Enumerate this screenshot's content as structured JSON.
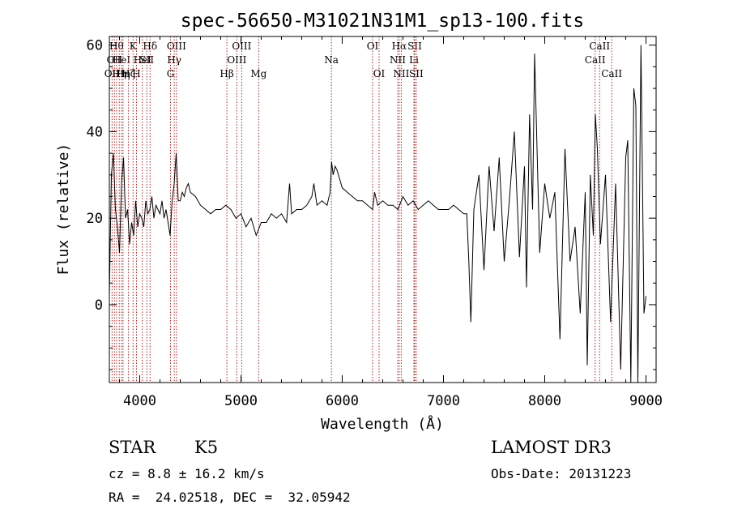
{
  "chart_data": {
    "type": "line",
    "title": "spec-56650-M31021N31M1_sp13-100.fits",
    "xlabel": "Wavelength (Å)",
    "ylabel": "Flux (relative)",
    "xlim": [
      3700,
      9100
    ],
    "ylim": [
      -18,
      62
    ],
    "x_ticks": [
      4000,
      5000,
      6000,
      7000,
      8000,
      9000
    ],
    "y_ticks": [
      0,
      20,
      40,
      60
    ],
    "grid": false,
    "line_color": "#000000",
    "marker_color": "#b22222",
    "series": [
      {
        "x": [
          3700,
          3720,
          3740,
          3760,
          3780,
          3800,
          3820,
          3840,
          3860,
          3880,
          3900,
          3920,
          3940,
          3960,
          3980,
          4000,
          4020,
          4040,
          4060,
          4080,
          4100,
          4120,
          4140,
          4160,
          4180,
          4200,
          4220,
          4240,
          4260,
          4280,
          4300,
          4320,
          4340,
          4360,
          4380,
          4400,
          4420,
          4440,
          4460,
          4480,
          4500,
          4550,
          4600,
          4650,
          4700,
          4750,
          4800,
          4850,
          4900,
          4950,
          5000,
          5050,
          5100,
          5150,
          5200,
          5250,
          5300,
          5350,
          5400,
          5450,
          5480,
          5500,
          5550,
          5600,
          5650,
          5700,
          5720,
          5750,
          5800,
          5850,
          5880,
          5895,
          5910,
          5930,
          5950,
          6000,
          6050,
          6100,
          6150,
          6200,
          6250,
          6300,
          6320,
          6350,
          6400,
          6450,
          6500,
          6550,
          6600,
          6650,
          6700,
          6750,
          6800,
          6850,
          6900,
          6950,
          7000,
          7050,
          7100,
          7150,
          7200,
          7230,
          7250,
          7270,
          7300,
          7350,
          7400,
          7450,
          7500,
          7550,
          7600,
          7650,
          7700,
          7750,
          7800,
          7820,
          7850,
          7880,
          7900,
          7950,
          8000,
          8050,
          8100,
          8150,
          8200,
          8250,
          8300,
          8350,
          8400,
          8420,
          8450,
          8480,
          8500,
          8520,
          8550,
          8600,
          8650,
          8700,
          8750,
          8800,
          8820,
          8850,
          8880,
          8900,
          8920,
          8950,
          8980,
          9000
        ],
        "y": [
          2,
          30,
          35,
          22,
          18,
          12,
          28,
          34,
          20,
          22,
          14,
          19,
          16,
          24,
          18,
          21,
          20,
          18,
          24,
          21,
          22,
          25,
          20,
          23,
          22,
          21,
          24,
          20,
          22,
          19,
          16,
          24,
          28,
          35,
          24,
          24,
          26,
          25,
          27,
          28,
          26,
          25,
          23,
          22,
          21,
          22,
          22,
          23,
          22,
          20,
          21,
          18,
          20,
          16,
          19,
          19,
          21,
          20,
          21,
          19,
          28,
          21,
          22,
          22,
          23,
          25,
          28,
          23,
          24,
          23,
          26,
          33,
          30,
          32,
          31,
          27,
          26,
          25,
          24,
          24,
          23,
          22,
          26,
          23,
          24,
          23,
          23,
          22,
          25,
          23,
          24,
          22,
          23,
          24,
          23,
          22,
          22,
          22,
          23,
          22,
          21,
          21,
          10,
          -4,
          22,
          30,
          8,
          32,
          17,
          34,
          10,
          24,
          40,
          11,
          32,
          4,
          44,
          22,
          58,
          12,
          28,
          20,
          26,
          -8,
          36,
          10,
          18,
          -2,
          26,
          -14,
          30,
          16,
          44,
          36,
          14,
          30,
          -4,
          28,
          -15,
          34,
          38,
          -18,
          50,
          46,
          -18,
          60,
          -2,
          2
        ]
      }
    ],
    "line_markers": [
      {
        "wavelength": 3727,
        "label": "OII",
        "row": 2
      },
      {
        "wavelength": 3750,
        "label": "OII",
        "row": 1
      },
      {
        "wavelength": 3771,
        "label": "Hθ",
        "row": 0
      },
      {
        "wavelength": 3798,
        "label": "Hη",
        "row": 2
      },
      {
        "wavelength": 3820,
        "label": "HeI",
        "row": 1
      },
      {
        "wavelength": 3835,
        "label": "Hη",
        "row": 2
      },
      {
        "wavelength": 3889,
        "label": "Hζ",
        "row": 2
      },
      {
        "wavelength": 3934,
        "label": "K",
        "row": 0
      },
      {
        "wavelength": 3968,
        "label": "H",
        "row": 2
      },
      {
        "wavelength": 4026,
        "label": "HeI",
        "row": 1
      },
      {
        "wavelength": 4070,
        "label": "SII",
        "row": 1
      },
      {
        "wavelength": 4102,
        "label": "Hδ",
        "row": 0
      },
      {
        "wavelength": 4304,
        "label": "G",
        "row": 2
      },
      {
        "wavelength": 4341,
        "label": "Hγ",
        "row": 1
      },
      {
        "wavelength": 4363,
        "label": "OIII",
        "row": 0
      },
      {
        "wavelength": 4861,
        "label": "Hβ",
        "row": 2
      },
      {
        "wavelength": 4959,
        "label": "OIII",
        "row": 1
      },
      {
        "wavelength": 5007,
        "label": "OIII",
        "row": 0
      },
      {
        "wavelength": 5175,
        "label": "Mg",
        "row": 2
      },
      {
        "wavelength": 5893,
        "label": "Na",
        "row": 1
      },
      {
        "wavelength": 6300,
        "label": "OI",
        "row": 0
      },
      {
        "wavelength": 6364,
        "label": "OI",
        "row": 2
      },
      {
        "wavelength": 6548,
        "label": "NII",
        "row": 1
      },
      {
        "wavelength": 6563,
        "label": "Hα",
        "row": 0
      },
      {
        "wavelength": 6583,
        "label": "NII",
        "row": 2
      },
      {
        "wavelength": 6708,
        "label": "Li",
        "row": 1
      },
      {
        "wavelength": 6716,
        "label": "SII",
        "row": 0
      },
      {
        "wavelength": 6731,
        "label": "SII",
        "row": 2
      },
      {
        "wavelength": 8498,
        "label": "CaII",
        "row": 1
      },
      {
        "wavelength": 8542,
        "label": "CaII",
        "row": 0
      },
      {
        "wavelength": 8662,
        "label": "CaII",
        "row": 2
      }
    ]
  },
  "info": {
    "class": "STAR",
    "subclass": "K5",
    "survey": "LAMOST DR3",
    "redshift": "cz = 8.8 ± 16.2 km/s",
    "obs_date": "Obs-Date: 20131223",
    "coords": "RA =  24.02518, DEC =  32.05942"
  }
}
